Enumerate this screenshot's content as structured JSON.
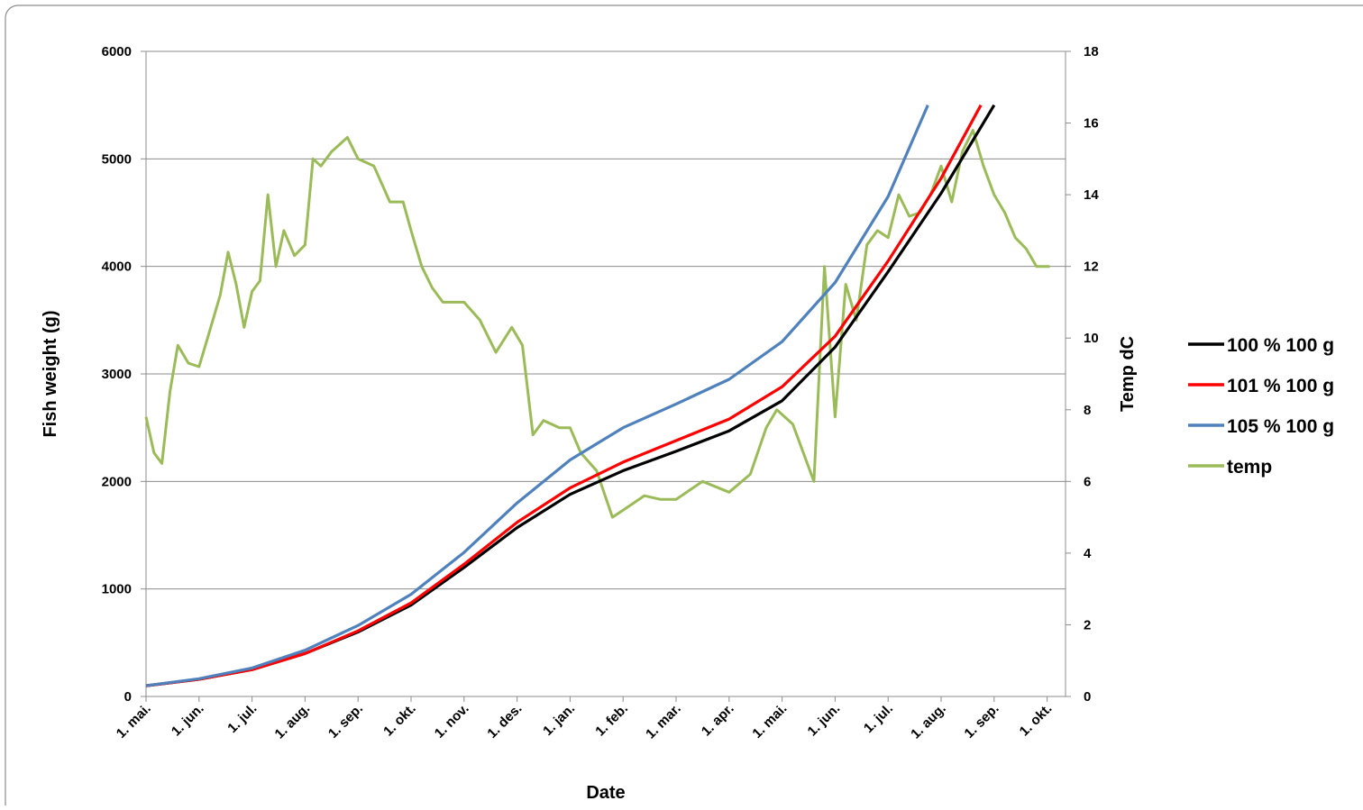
{
  "chart_data": {
    "type": "line",
    "title": "",
    "xlabel": "Date",
    "ylabel": "Fish weight (g)",
    "y2label": "Temp dC",
    "ylim": [
      0,
      6000
    ],
    "y2lim": [
      0,
      18
    ],
    "y_ticks": [
      "0",
      "1000",
      "2000",
      "3000",
      "4000",
      "5000",
      "6000"
    ],
    "y2_ticks": [
      "0",
      "2",
      "4",
      "6",
      "8",
      "10",
      "12",
      "14",
      "16",
      "18"
    ],
    "x_tick_labels": [
      "1. mai.",
      "1. jun.",
      "1. jul.",
      "1. aug.",
      "1. sep.",
      "1. okt.",
      "1. nov.",
      "1. des.",
      "1. jan.",
      "1. feb.",
      "1. mar.",
      "1. apr.",
      "1. mai.",
      "1. jun.",
      "1. jul.",
      "1. aug.",
      "1. sep.",
      "1. okt."
    ],
    "grid": "horizontal",
    "legend_position": "right",
    "series": [
      {
        "name": "100 % 100 g",
        "axis": "left",
        "color": "#000000",
        "points": [
          [
            0,
            100
          ],
          [
            1,
            160
          ],
          [
            2,
            250
          ],
          [
            3,
            400
          ],
          [
            4,
            600
          ],
          [
            5,
            850
          ],
          [
            6,
            1200
          ],
          [
            7,
            1570
          ],
          [
            8,
            1880
          ],
          [
            9,
            2100
          ],
          [
            10,
            2280
          ],
          [
            11,
            2470
          ],
          [
            12,
            2750
          ],
          [
            13,
            3250
          ],
          [
            14,
            3950
          ],
          [
            15,
            4680
          ],
          [
            16,
            5500
          ]
        ]
      },
      {
        "name": "101 % 100 g",
        "axis": "left",
        "color": "#ff0000",
        "points": [
          [
            0,
            100
          ],
          [
            1,
            160
          ],
          [
            2,
            250
          ],
          [
            3,
            400
          ],
          [
            4,
            610
          ],
          [
            5,
            870
          ],
          [
            6,
            1230
          ],
          [
            7,
            1620
          ],
          [
            8,
            1940
          ],
          [
            9,
            2180
          ],
          [
            10,
            2380
          ],
          [
            11,
            2580
          ],
          [
            12,
            2880
          ],
          [
            13,
            3350
          ],
          [
            14,
            4050
          ],
          [
            15,
            4820
          ],
          [
            15.75,
            5500
          ]
        ]
      },
      {
        "name": "105 % 100 g",
        "axis": "left",
        "color": "#4f81bd",
        "points": [
          [
            0,
            100
          ],
          [
            1,
            165
          ],
          [
            2,
            265
          ],
          [
            3,
            430
          ],
          [
            4,
            660
          ],
          [
            5,
            950
          ],
          [
            6,
            1340
          ],
          [
            7,
            1800
          ],
          [
            8,
            2200
          ],
          [
            9,
            2500
          ],
          [
            10,
            2720
          ],
          [
            11,
            2950
          ],
          [
            12,
            3300
          ],
          [
            13,
            3850
          ],
          [
            14,
            4650
          ],
          [
            14.75,
            5500
          ]
        ]
      },
      {
        "name": "temp",
        "axis": "right",
        "color": "#9bbb59",
        "points": [
          [
            0,
            7.8
          ],
          [
            0.15,
            6.8
          ],
          [
            0.3,
            6.5
          ],
          [
            0.45,
            8.5
          ],
          [
            0.6,
            9.8
          ],
          [
            0.8,
            9.3
          ],
          [
            1,
            9.2
          ],
          [
            1.2,
            10.2
          ],
          [
            1.4,
            11.2
          ],
          [
            1.55,
            12.4
          ],
          [
            1.7,
            11.5
          ],
          [
            1.85,
            10.3
          ],
          [
            2,
            11.3
          ],
          [
            2.15,
            11.6
          ],
          [
            2.3,
            14
          ],
          [
            2.45,
            12
          ],
          [
            2.6,
            13
          ],
          [
            2.8,
            12.3
          ],
          [
            3,
            12.6
          ],
          [
            3.15,
            15
          ],
          [
            3.3,
            14.8
          ],
          [
            3.5,
            15.2
          ],
          [
            3.8,
            15.6
          ],
          [
            4,
            15.0
          ],
          [
            4.3,
            14.8
          ],
          [
            4.6,
            13.8
          ],
          [
            4.85,
            13.8
          ],
          [
            5,
            13.0
          ],
          [
            5.2,
            12.0
          ],
          [
            5.4,
            11.4
          ],
          [
            5.6,
            11.0
          ],
          [
            6,
            11.0
          ],
          [
            6.3,
            10.5
          ],
          [
            6.6,
            9.6
          ],
          [
            6.9,
            10.3
          ],
          [
            7.1,
            9.8
          ],
          [
            7.3,
            7.3
          ],
          [
            7.5,
            7.7
          ],
          [
            7.8,
            7.5
          ],
          [
            8,
            7.5
          ],
          [
            8.2,
            6.8
          ],
          [
            8.5,
            6.3
          ],
          [
            8.8,
            5.0
          ],
          [
            9.1,
            5.3
          ],
          [
            9.4,
            5.6
          ],
          [
            9.7,
            5.5
          ],
          [
            10,
            5.5
          ],
          [
            10.5,
            6.0
          ],
          [
            11,
            5.7
          ],
          [
            11.4,
            6.2
          ],
          [
            11.7,
            7.5
          ],
          [
            11.9,
            8.0
          ],
          [
            12.2,
            7.6
          ],
          [
            12.6,
            6.0
          ],
          [
            12.8,
            12.0
          ],
          [
            13,
            7.8
          ],
          [
            13.2,
            11.5
          ],
          [
            13.4,
            10.5
          ],
          [
            13.6,
            12.6
          ],
          [
            13.8,
            13.0
          ],
          [
            14,
            12.8
          ],
          [
            14.2,
            14.0
          ],
          [
            14.4,
            13.4
          ],
          [
            14.6,
            13.5
          ],
          [
            14.8,
            14.0
          ],
          [
            15,
            14.8
          ],
          [
            15.2,
            13.8
          ],
          [
            15.4,
            15.2
          ],
          [
            15.6,
            15.8
          ],
          [
            15.8,
            14.8
          ],
          [
            16,
            14.0
          ],
          [
            16.2,
            13.5
          ],
          [
            16.4,
            12.8
          ],
          [
            16.6,
            12.5
          ],
          [
            16.8,
            12.0
          ],
          [
            17.05,
            12.0
          ]
        ]
      }
    ]
  }
}
